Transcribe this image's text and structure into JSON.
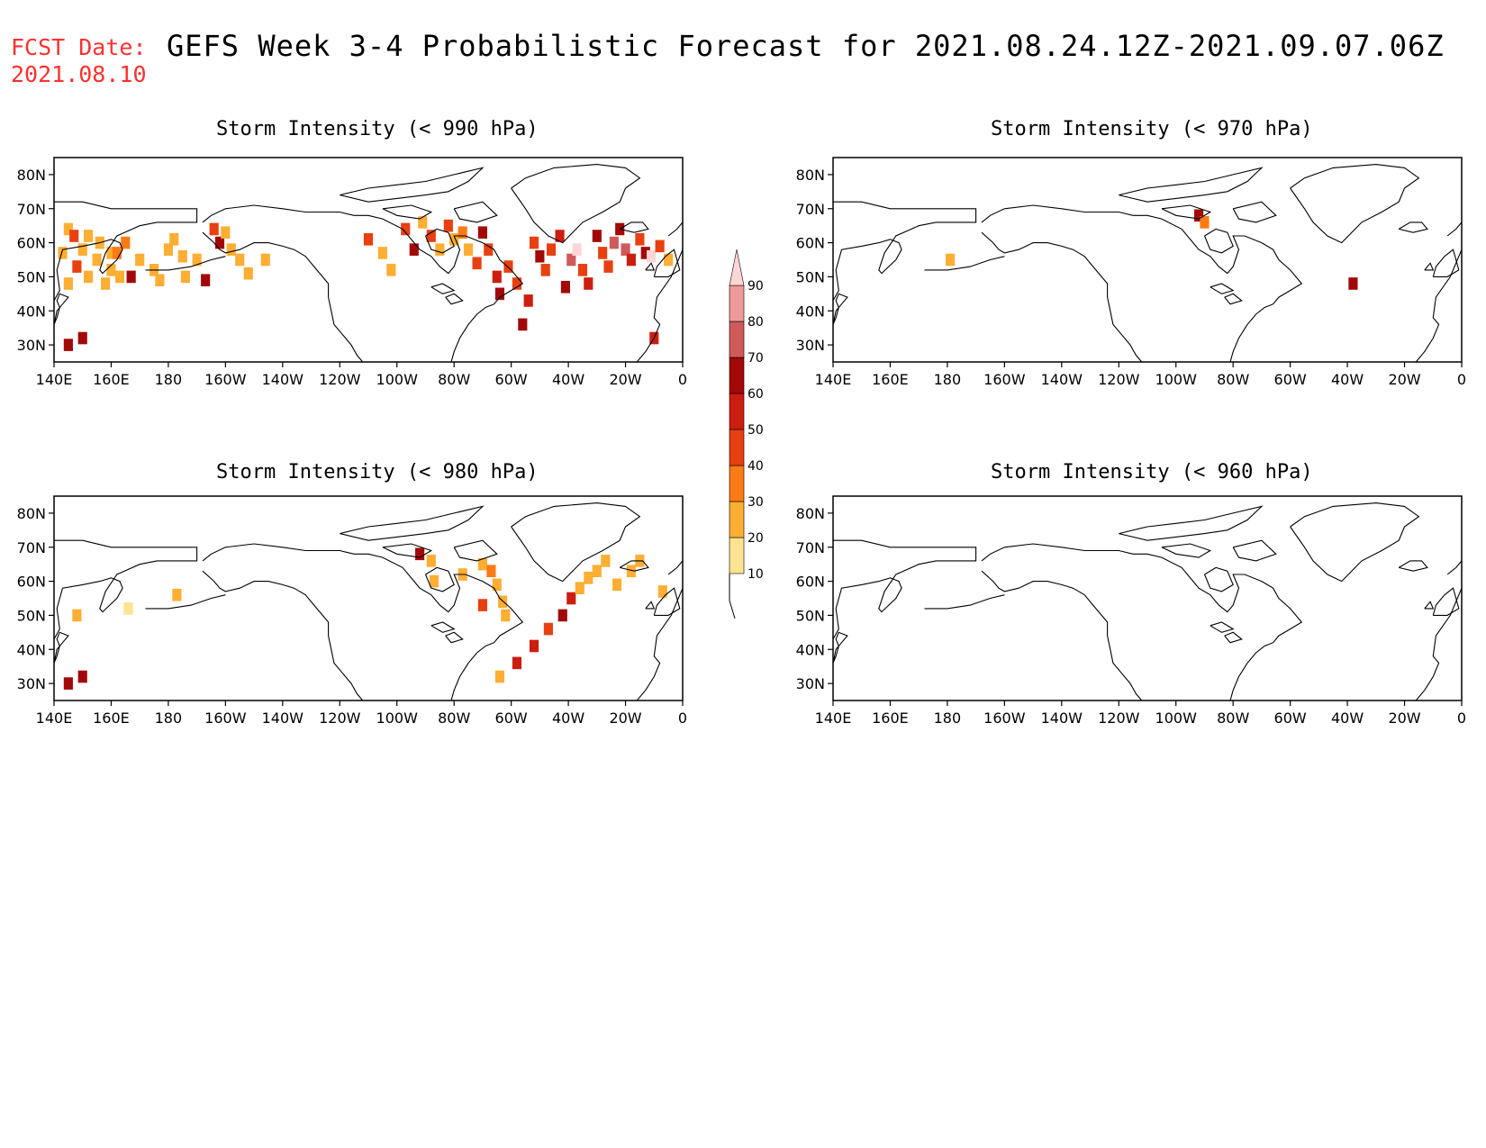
{
  "header": {
    "fcst_label": "FCST Date:",
    "fcst_date": "2021.08.10",
    "title": "GEFS Week 3-4 Probabilistic Forecast for 2021.08.24.12Z-2021.09.07.06Z"
  },
  "axes": {
    "lat_ticks": [
      "80N",
      "70N",
      "60N",
      "50N",
      "40N",
      "30N"
    ],
    "lon_ticks": [
      "140E",
      "160E",
      "180",
      "160W",
      "140W",
      "120W",
      "100W",
      "80W",
      "60W",
      "40W",
      "20W",
      "0"
    ]
  },
  "colorbar": {
    "levels": [
      10,
      20,
      30,
      40,
      50,
      60,
      70,
      80,
      90
    ],
    "labels": [
      "10",
      "20",
      "30",
      "40",
      "50",
      "60",
      "70",
      "80",
      "90"
    ],
    "colors": [
      "#fff7bc",
      "#fee391",
      "#fdae33",
      "#fe7a14",
      "#e84010",
      "#cc1e10",
      "#a30808",
      "#d05a5a",
      "#ef9a9a",
      "#ffd6d6"
    ]
  },
  "panels": [
    {
      "id": "p990",
      "title": "Storm Intensity (< 990 hPa)",
      "threshold_hpa": 990
    },
    {
      "id": "p970",
      "title": "Storm Intensity (< 970 hPa)",
      "threshold_hpa": 970
    },
    {
      "id": "p980",
      "title": "Storm Intensity (< 980 hPa)",
      "threshold_hpa": 980
    },
    {
      "id": "p960",
      "title": "Storm Intensity (< 960 hPa)",
      "threshold_hpa": 960
    }
  ],
  "chart_data": [
    {
      "type": "heatmap",
      "title": "Storm Intensity (< 990 hPa)",
      "xlim": [
        140,
        360
      ],
      "ylim": [
        25,
        85
      ],
      "cells": [
        [
          145,
          64,
          20
        ],
        [
          147,
          62,
          40
        ],
        [
          150,
          58,
          20
        ],
        [
          155,
          55,
          20
        ],
        [
          160,
          52,
          20
        ],
        [
          163,
          50,
          20
        ],
        [
          158,
          48,
          20
        ],
        [
          152,
          50,
          20
        ],
        [
          145,
          48,
          20
        ],
        [
          148,
          53,
          40
        ],
        [
          143,
          57,
          20
        ],
        [
          152,
          62,
          20
        ],
        [
          156,
          60,
          20
        ],
        [
          160,
          57,
          20
        ],
        [
          165,
          60,
          30
        ],
        [
          167,
          50,
          60
        ],
        [
          162,
          57,
          30
        ],
        [
          170,
          55,
          20
        ],
        [
          175,
          52,
          20
        ],
        [
          177,
          49,
          20
        ],
        [
          180,
          58,
          20
        ],
        [
          182,
          61,
          20
        ],
        [
          185,
          56,
          20
        ],
        [
          186,
          50,
          20
        ],
        [
          190,
          55,
          20
        ],
        [
          193,
          49,
          60
        ],
        [
          196,
          64,
          40
        ],
        [
          198,
          60,
          60
        ],
        [
          200,
          63,
          20
        ],
        [
          202,
          58,
          20
        ],
        [
          205,
          55,
          20
        ],
        [
          208,
          51,
          20
        ],
        [
          214,
          55,
          20
        ],
        [
          250,
          61,
          40
        ],
        [
          255,
          57,
          20
        ],
        [
          258,
          52,
          20
        ],
        [
          263,
          64,
          40
        ],
        [
          266,
          58,
          60
        ],
        [
          269,
          66,
          20
        ],
        [
          272,
          62,
          40
        ],
        [
          275,
          58,
          20
        ],
        [
          278,
          65,
          40
        ],
        [
          280,
          61,
          20
        ],
        [
          283,
          63,
          30
        ],
        [
          285,
          58,
          20
        ],
        [
          288,
          54,
          40
        ],
        [
          290,
          63,
          60
        ],
        [
          292,
          58,
          40
        ],
        [
          295,
          50,
          50
        ],
        [
          296,
          45,
          60
        ],
        [
          299,
          53,
          40
        ],
        [
          302,
          48,
          40
        ],
        [
          304,
          36,
          60
        ],
        [
          306,
          43,
          50
        ],
        [
          308,
          60,
          40
        ],
        [
          310,
          56,
          60
        ],
        [
          312,
          52,
          40
        ],
        [
          314,
          58,
          40
        ],
        [
          317,
          62,
          50
        ],
        [
          319,
          47,
          60
        ],
        [
          321,
          55,
          70
        ],
        [
          323,
          58,
          90
        ],
        [
          325,
          52,
          40
        ],
        [
          327,
          48,
          50
        ],
        [
          330,
          62,
          60
        ],
        [
          332,
          57,
          40
        ],
        [
          334,
          53,
          40
        ],
        [
          336,
          60,
          70
        ],
        [
          338,
          64,
          60
        ],
        [
          340,
          58,
          70
        ],
        [
          342,
          55,
          50
        ],
        [
          345,
          61,
          40
        ],
        [
          347,
          57,
          60
        ],
        [
          349,
          56,
          90
        ],
        [
          352,
          59,
          40
        ],
        [
          355,
          55,
          20
        ],
        [
          350,
          32,
          50
        ],
        [
          145,
          30,
          60
        ],
        [
          150,
          32,
          60
        ]
      ]
    },
    {
      "type": "heatmap",
      "title": "Storm Intensity (< 970 hPa)",
      "xlim": [
        140,
        360
      ],
      "ylim": [
        25,
        85
      ],
      "cells": [
        [
          268,
          68,
          60
        ],
        [
          270,
          66,
          30
        ],
        [
          181,
          55,
          20
        ],
        [
          322,
          48,
          60
        ]
      ]
    },
    {
      "type": "heatmap",
      "title": "Storm Intensity (< 980 hPa)",
      "xlim": [
        140,
        360
      ],
      "ylim": [
        25,
        85
      ],
      "cells": [
        [
          145,
          30,
          60
        ],
        [
          150,
          32,
          60
        ],
        [
          148,
          50,
          20
        ],
        [
          183,
          56,
          20
        ],
        [
          166,
          52,
          10
        ],
        [
          268,
          68,
          60
        ],
        [
          272,
          66,
          20
        ],
        [
          273,
          60,
          20
        ],
        [
          283,
          62,
          20
        ],
        [
          290,
          65,
          20
        ],
        [
          295,
          59,
          20
        ],
        [
          297,
          54,
          20
        ],
        [
          298,
          50,
          20
        ],
        [
          290,
          53,
          40
        ],
        [
          293,
          63,
          30
        ],
        [
          302,
          36,
          50
        ],
        [
          308,
          41,
          50
        ],
        [
          313,
          46,
          40
        ],
        [
          318,
          50,
          60
        ],
        [
          321,
          55,
          50
        ],
        [
          324,
          58,
          20
        ],
        [
          327,
          61,
          20
        ],
        [
          330,
          63,
          20
        ],
        [
          333,
          66,
          20
        ],
        [
          337,
          59,
          20
        ],
        [
          342,
          63,
          20
        ],
        [
          345,
          66,
          20
        ],
        [
          353,
          57,
          20
        ],
        [
          296,
          32,
          20
        ]
      ]
    },
    {
      "type": "heatmap",
      "title": "Storm Intensity (< 960 hPa)",
      "xlim": [
        140,
        360
      ],
      "ylim": [
        25,
        85
      ],
      "cells": []
    }
  ]
}
